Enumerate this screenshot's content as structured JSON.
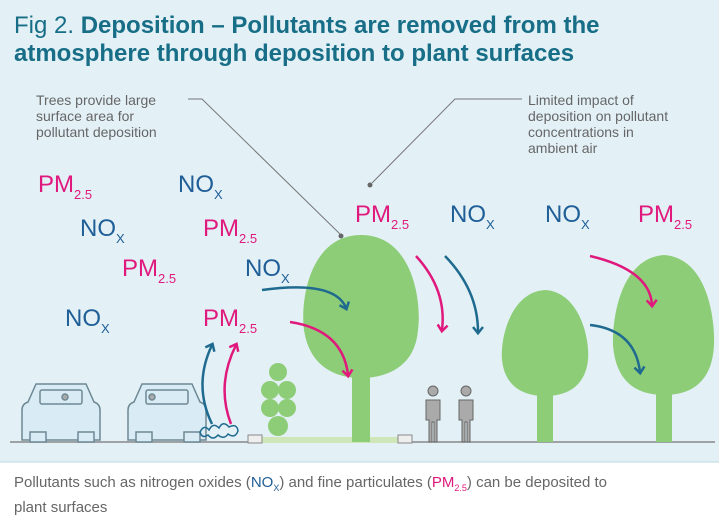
{
  "header": {
    "label": "Fig 2.",
    "title": "Deposition – Pollutants are removed from the atmosphere through deposition to plant surfaces"
  },
  "annotations": [
    {
      "lines": [
        "Trees provide large",
        "surface area for",
        "pollutant deposition"
      ]
    },
    {
      "lines": [
        "Limited impact of",
        "deposition on pollutant",
        "concentrations in",
        "ambient air"
      ]
    }
  ],
  "pollutants": [
    {
      "main": "PM",
      "sub": "2.5"
    },
    {
      "main": "NO",
      "sub": "X"
    },
    {
      "main": "NO",
      "sub": "X"
    },
    {
      "main": "PM",
      "sub": "2.5"
    },
    {
      "main": "PM",
      "sub": "2.5"
    },
    {
      "main": "NO",
      "sub": "X"
    },
    {
      "main": "NO",
      "sub": "X"
    },
    {
      "main": "PM",
      "sub": "2.5"
    },
    {
      "main": "PM",
      "sub": "2.5"
    },
    {
      "main": "NO",
      "sub": "X"
    },
    {
      "main": "NO",
      "sub": "X"
    },
    {
      "main": "PM",
      "sub": "2.5"
    }
  ],
  "caption": {
    "part1": "Pollutants such as nitrogen oxides (",
    "nox_main": "NO",
    "nox_sub": "X",
    "part2": ") and fine particulates (",
    "pm_main": "PM",
    "pm_sub": "2.5",
    "part3": ") can be deposited to plant surfaces"
  }
}
